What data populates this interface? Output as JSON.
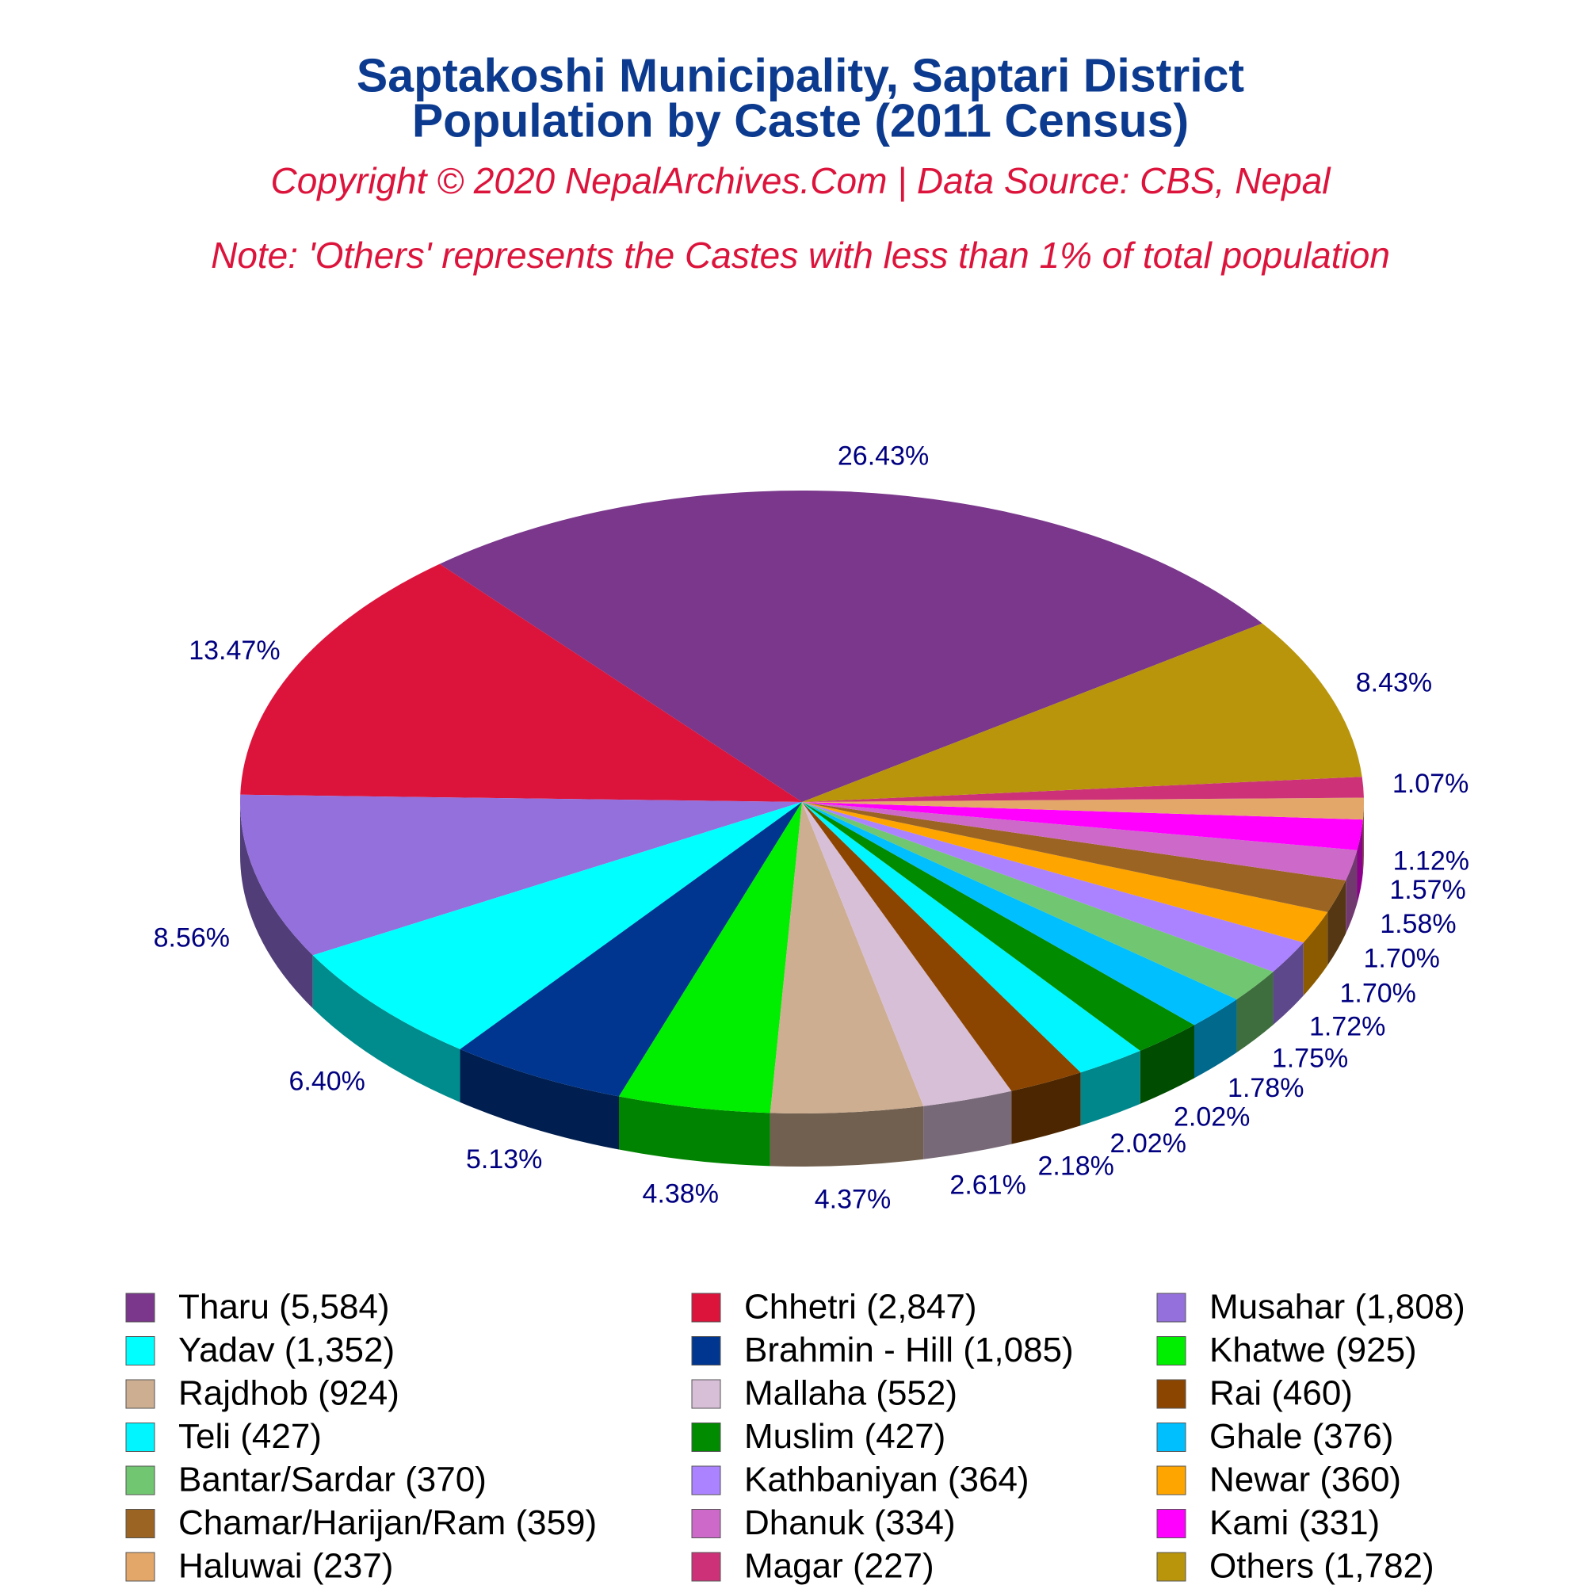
{
  "chart_data": {
    "type": "pie3d",
    "title": "Saptakoshi Municipality, Saptari District",
    "subtitle": "Population by Caste (2011 Census)",
    "source": "Copyright © 2020 NepalArchives.Com | Data Source: CBS, Nepal",
    "note": "Note: 'Others' represents the Castes with less than 1% of total population",
    "categories": [
      "Tharu (5,584)",
      "Chhetri (2,847)",
      "Musahar (1,808)",
      "Yadav (1,352)",
      "Brahmin - Hill (1,085)",
      "Khatwe (925)",
      "Rajdhob (924)",
      "Mallaha (552)",
      "Rai (460)",
      "Teli (427)",
      "Muslim (427)",
      "Ghale (376)",
      "Bantar/Sardar (370)",
      "Kathbaniyan (364)",
      "Newar (360)",
      "Chamar/Harijan/Ram (359)",
      "Dhanuk (334)",
      "Kami (331)",
      "Haluwai (237)",
      "Magar (227)",
      "Others (1,782)"
    ],
    "values": [
      26.43,
      13.47,
      8.56,
      6.4,
      5.13,
      4.38,
      4.37,
      2.61,
      2.18,
      2.02,
      2.02,
      1.78,
      1.75,
      1.72,
      1.7,
      1.7,
      1.58,
      1.57,
      1.12,
      1.07,
      8.43
    ],
    "value_labels": [
      "26.43%",
      "13.47%",
      "8.56%",
      "6.40%",
      "5.13%",
      "4.38%",
      "4.37%",
      "2.61%",
      "2.18%",
      "2.02%",
      "2.02%",
      "1.78%",
      "1.75%",
      "1.72%",
      "1.70%",
      "1.70%",
      "1.58%",
      "1.57%",
      "1.12%",
      "1.07%",
      "8.43%"
    ],
    "colors": [
      "#7a378b",
      "#dc143c",
      "#9370db",
      "#00ffff",
      "#00368f",
      "#00ee00",
      "#cdae91",
      "#d8bfd8",
      "#8b4500",
      "#00f5ff",
      "#008b00",
      "#00bfff",
      "#71c671",
      "#ab82ff",
      "#ffa500",
      "#9b6423",
      "#cd69c9",
      "#ff00ff",
      "#e3a869",
      "#cd3278",
      "#b8950b"
    ]
  }
}
